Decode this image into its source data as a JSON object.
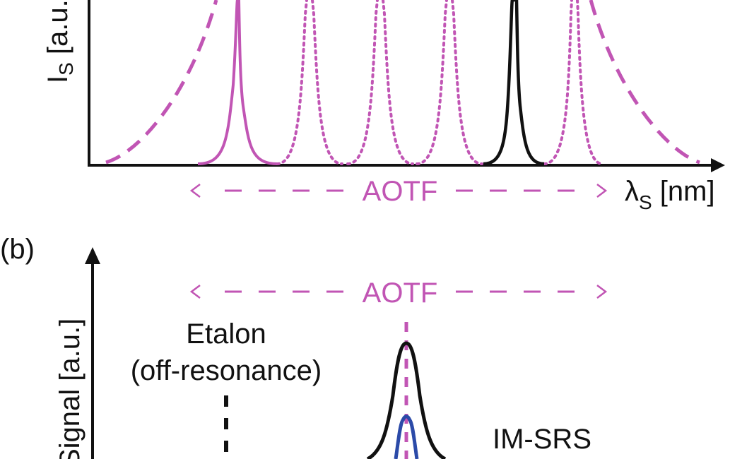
{
  "colors": {
    "magenta": "#c155b4",
    "black": "#111111",
    "blue": "#2b4aa8"
  },
  "panel_a": {
    "ylabel_main": "I",
    "ylabel_sub": "S",
    "ylabel_rest": " [a.u.]",
    "xlabel_main": "λ",
    "xlabel_sub": "S",
    "xlabel_rest": " [nm]",
    "range_label": "AOTF"
  },
  "panel_b": {
    "label": "(b)",
    "ylabel": "Signal [a.u.]",
    "range_label": "AOTF",
    "etalon_line1": "Etalon",
    "etalon_line2": "(off-resonance)",
    "imsrs_label": "IM-SRS"
  }
}
